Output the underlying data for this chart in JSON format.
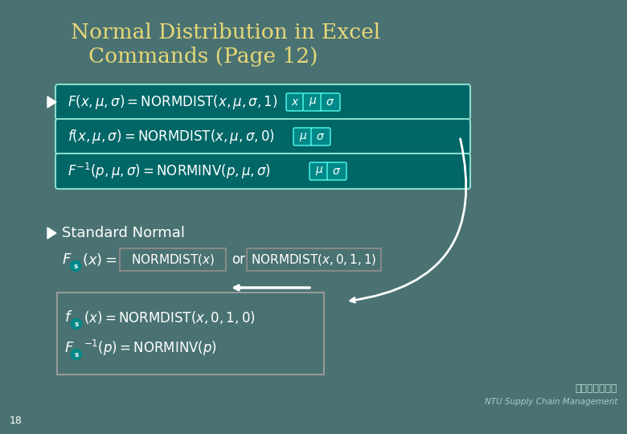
{
  "title_line1": "Normal Distribution in Excel",
  "title_line2": "Commands (Page 12)",
  "title_color": "#E8D878",
  "bg_color": "#4A7272",
  "box_bg_dark": "#006666",
  "box_border_color": "#55DDCC",
  "highlight_color": "#00AAAA",
  "page_num": "18",
  "bottom_text": "NTU Supply Chain Management",
  "logo_text": "臺大開放式課程"
}
